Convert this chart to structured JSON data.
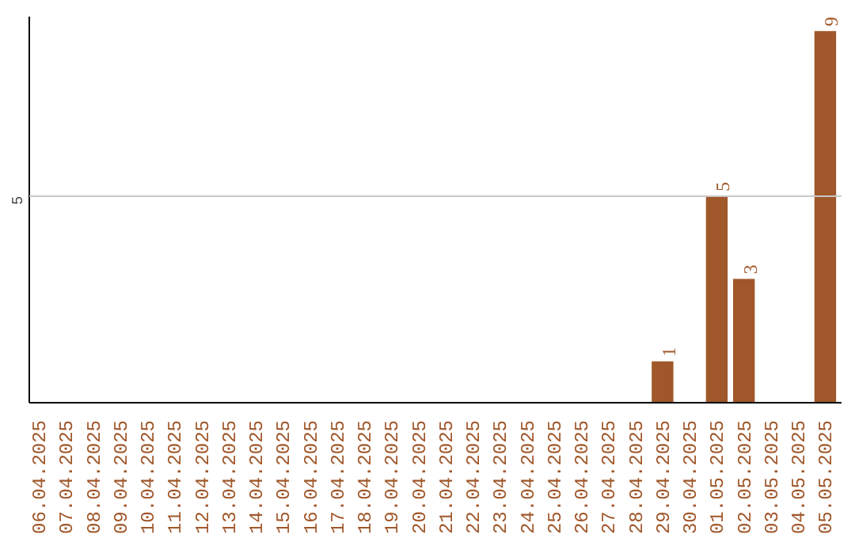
{
  "chart_data": {
    "type": "bar",
    "categories": [
      "06.04.2025",
      "07.04.2025",
      "08.04.2025",
      "09.04.2025",
      "10.04.2025",
      "11.04.2025",
      "12.04.2025",
      "13.04.2025",
      "14.04.2025",
      "15.04.2025",
      "16.04.2025",
      "17.04.2025",
      "18.04.2025",
      "19.04.2025",
      "20.04.2025",
      "21.04.2025",
      "22.04.2025",
      "23.04.2025",
      "24.04.2025",
      "25.04.2025",
      "26.04.2025",
      "27.04.2025",
      "28.04.2025",
      "29.04.2025",
      "30.04.2025",
      "01.05.2025",
      "02.05.2025",
      "03.05.2025",
      "04.05.2025",
      "05.05.2025"
    ],
    "values": [
      null,
      null,
      null,
      null,
      null,
      null,
      null,
      null,
      null,
      null,
      null,
      null,
      null,
      null,
      null,
      null,
      null,
      null,
      null,
      null,
      null,
      null,
      null,
      1,
      null,
      5,
      3,
      null,
      null,
      9
    ],
    "data_labels": true,
    "ylim": [
      0,
      9.35
    ],
    "ref_lines": [
      {
        "axis": "y",
        "value": 5,
        "label": "5",
        "color": "#c8c8c8"
      }
    ],
    "color": "#a0572a",
    "grid": false
  }
}
